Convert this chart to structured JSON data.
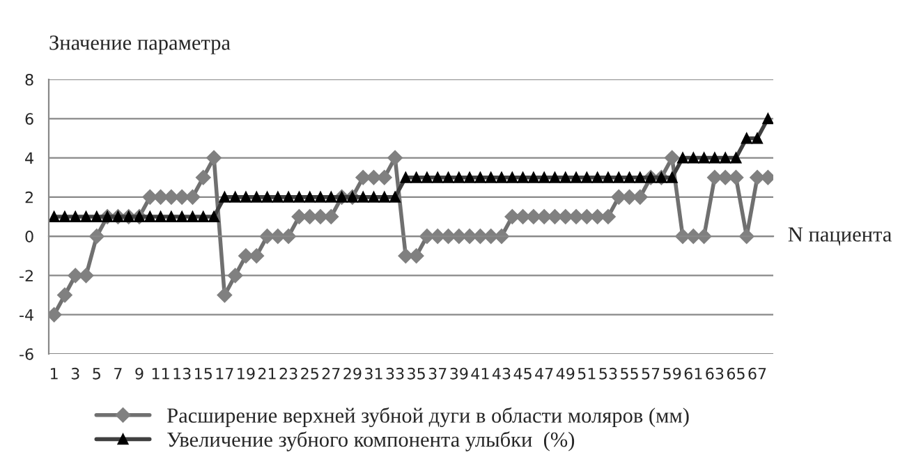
{
  "chart_data": {
    "type": "line",
    "ylabel": "Значение параметра",
    "xlabel": "N пациента",
    "categories": [
      "1",
      null,
      "3",
      null,
      "5",
      null,
      "7",
      null,
      "9",
      null,
      "11",
      null,
      "13",
      null,
      "15",
      null,
      "17",
      null,
      "19",
      null,
      "21",
      null,
      "23",
      null,
      "25",
      null,
      "27",
      null,
      "29",
      null,
      "31",
      null,
      "33",
      null,
      "35",
      null,
      "37",
      null,
      "39",
      null,
      "41",
      null,
      "43",
      null,
      "45",
      null,
      "47",
      null,
      "49",
      null,
      "51",
      null,
      "53",
      null,
      "55",
      null,
      "57",
      null,
      "59",
      null,
      "61",
      null,
      "63",
      null,
      "65",
      null,
      "67",
      null
    ],
    "series": [
      {
        "name": "Расширение верхней зубной дуги в области моляров (мм)",
        "color": "#808080",
        "marker": "diamond",
        "values": [
          -4,
          -3,
          -2,
          -2,
          0,
          1,
          1,
          1,
          1,
          2,
          2,
          2,
          2,
          2,
          3,
          4,
          -3,
          -2,
          -1,
          -1,
          0,
          0,
          0,
          1,
          1,
          1,
          1,
          2,
          2,
          3,
          3,
          3,
          4,
          -1,
          -1,
          0,
          0,
          0,
          0,
          0,
          0,
          0,
          0,
          1,
          1,
          1,
          1,
          1,
          1,
          1,
          1,
          1,
          1,
          2,
          2,
          2,
          3,
          3,
          4,
          0,
          0,
          0,
          3,
          3,
          3,
          0,
          3,
          3
        ]
      },
      {
        "name": "Увеличение зубного компонента улыбки  (%)",
        "color": "#000000",
        "marker": "triangle",
        "values": [
          1,
          1,
          1,
          1,
          1,
          1,
          1,
          1,
          1,
          1,
          1,
          1,
          1,
          1,
          1,
          1,
          2,
          2,
          2,
          2,
          2,
          2,
          2,
          2,
          2,
          2,
          2,
          2,
          2,
          2,
          2,
          2,
          2,
          3,
          3,
          3,
          3,
          3,
          3,
          3,
          3,
          3,
          3,
          3,
          3,
          3,
          3,
          3,
          3,
          3,
          3,
          3,
          3,
          3,
          3,
          3,
          3,
          3,
          3,
          4,
          4,
          4,
          4,
          4,
          4,
          5,
          5,
          6
        ]
      }
    ],
    "ylim": [
      -6,
      8
    ],
    "yticks": [
      -6,
      -4,
      -2,
      0,
      2,
      4,
      6,
      8
    ],
    "grid": "y",
    "legend": "bottom"
  }
}
